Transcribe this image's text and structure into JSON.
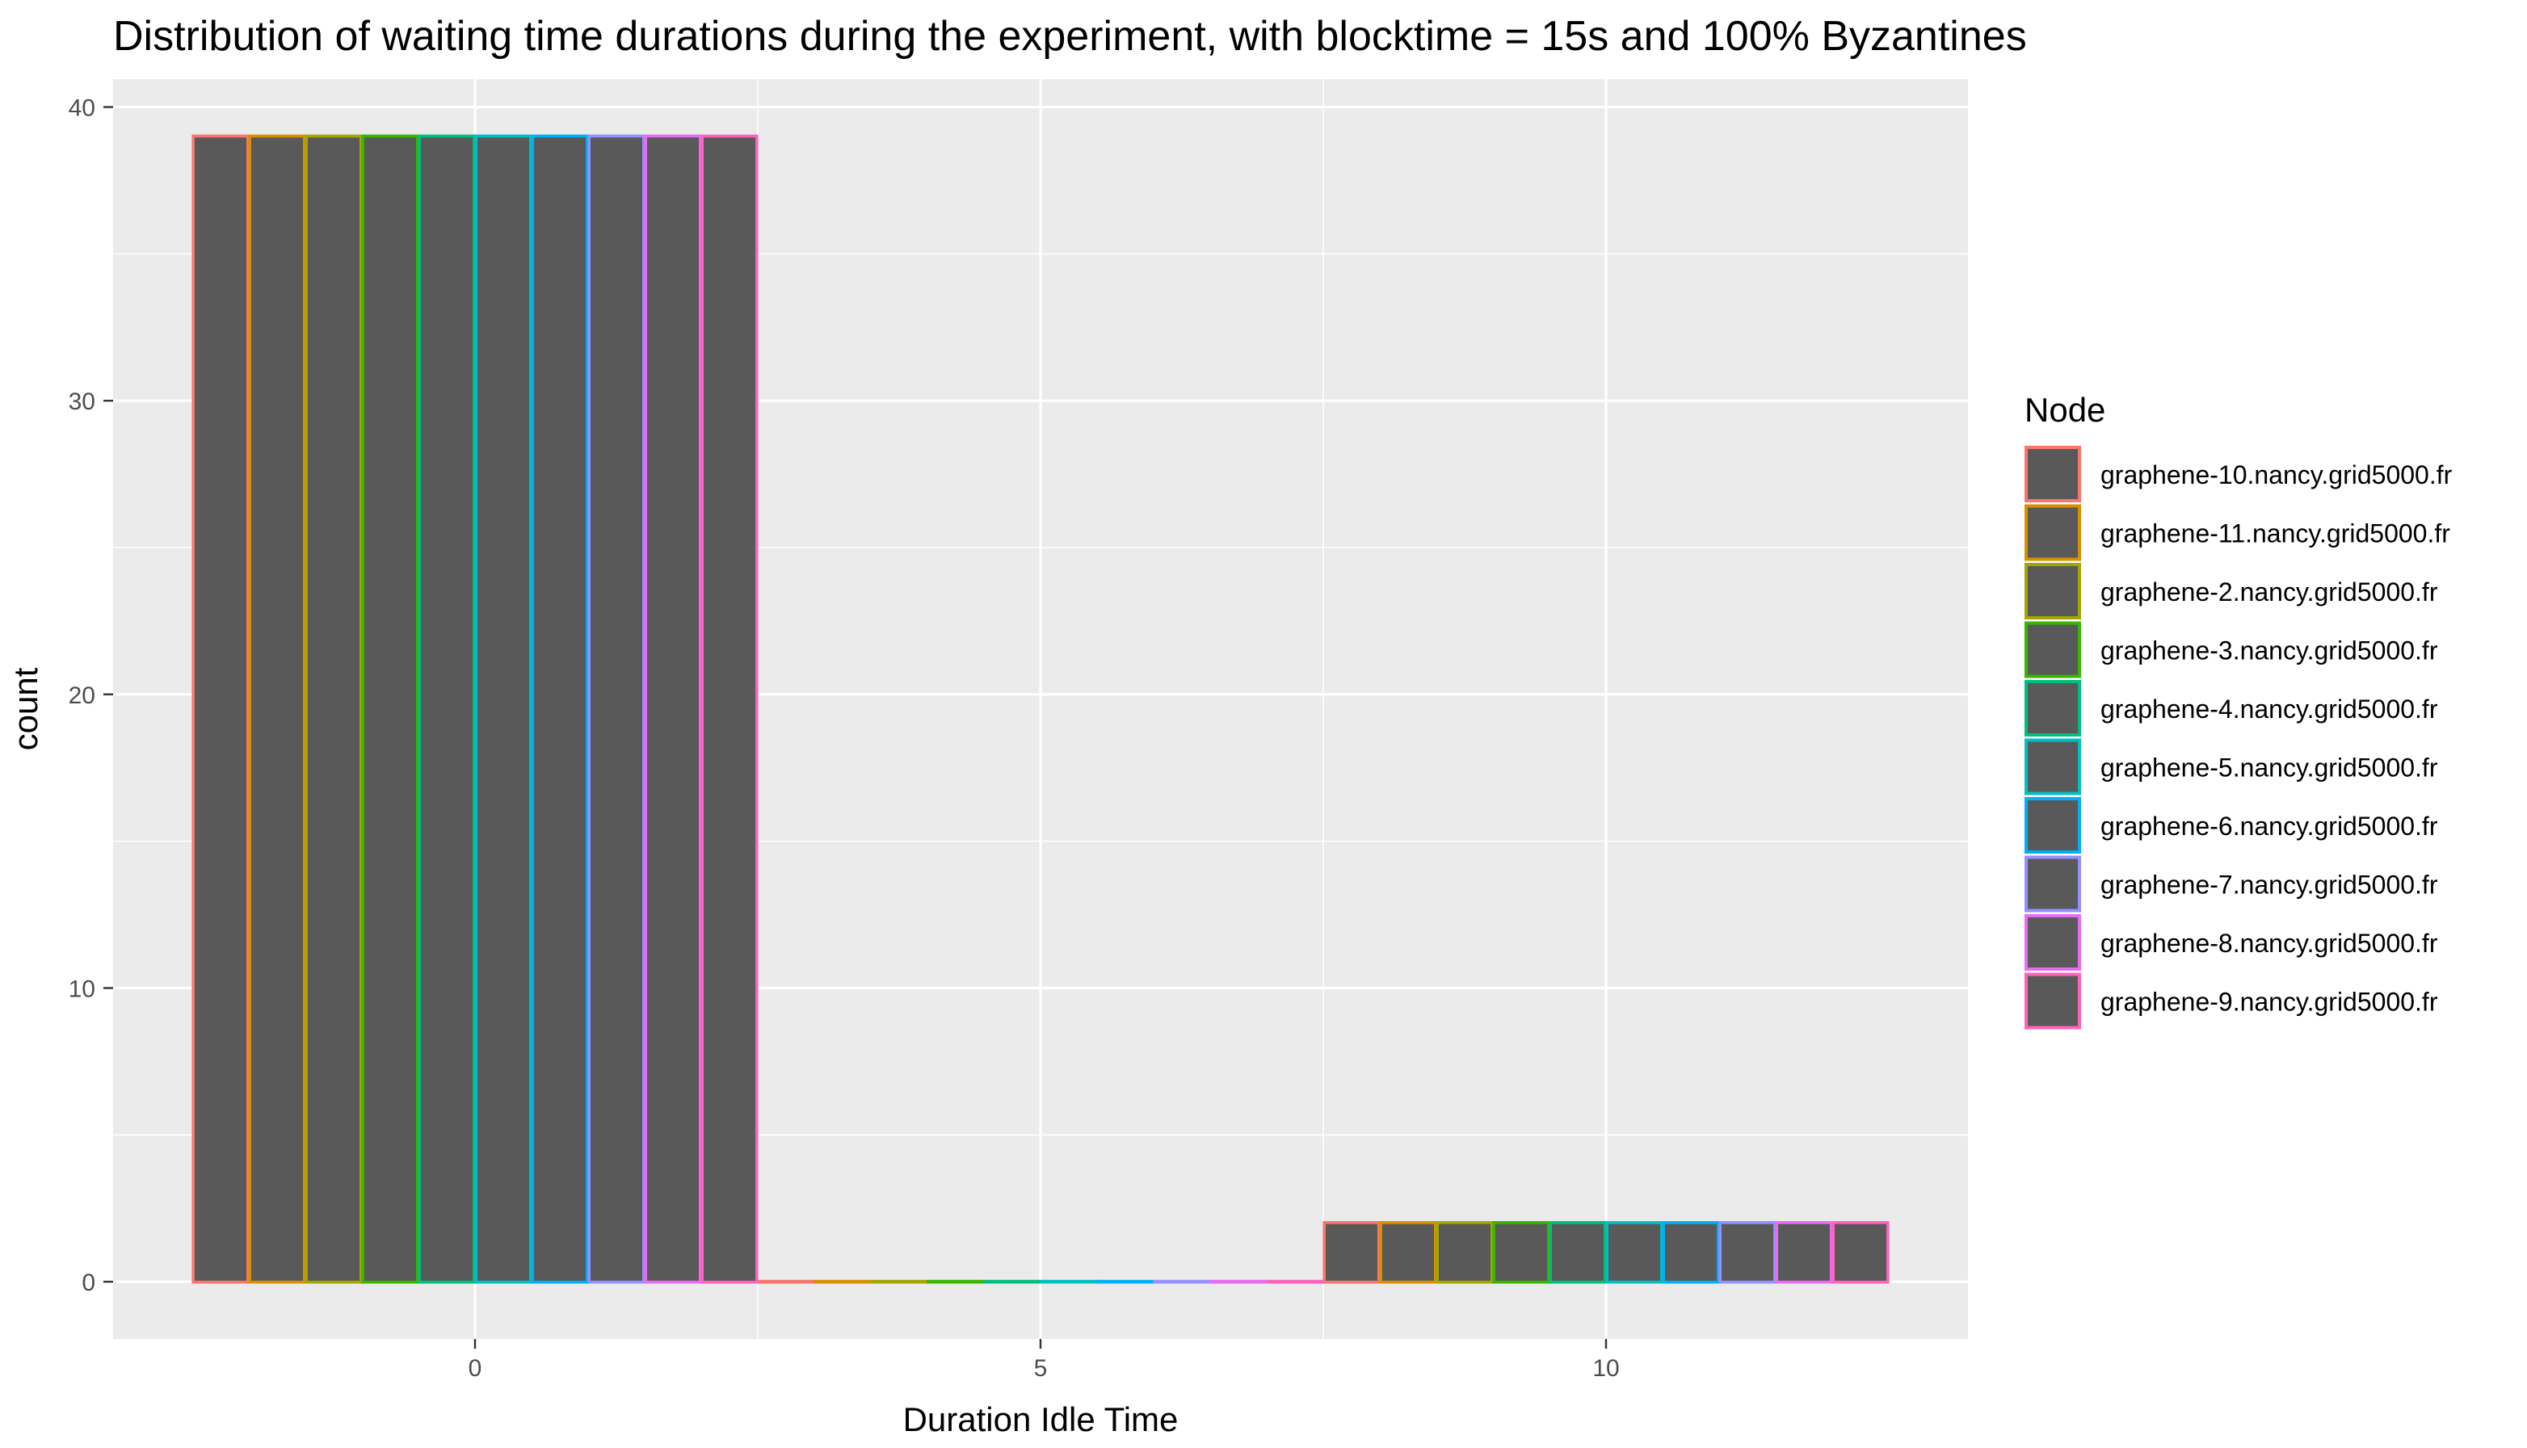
{
  "chart_data": {
    "type": "bar",
    "title": "Distribution of waiting time durations during the experiment, with blocktime = 15s and 100% Byzantines",
    "xlabel": "Duration Idle Time",
    "ylabel": "count",
    "x_ticks": [
      0,
      5,
      10
    ],
    "y_ticks": [
      0,
      10,
      20,
      30,
      40
    ],
    "xlim": [
      -3.2,
      13.2
    ],
    "ylim": [
      -1.95,
      40.95
    ],
    "bins": [
      0,
      5,
      10
    ],
    "bin_width": 5,
    "bar_fill": "#595959",
    "panel_background": "#ebebeb",
    "grid": true,
    "legend_title": "Node",
    "legend_position": "right",
    "series": [
      {
        "name": "graphene-10.nancy.grid5000.fr",
        "color": "#F8766D",
        "values": [
          39,
          0,
          2
        ]
      },
      {
        "name": "graphene-11.nancy.grid5000.fr",
        "color": "#D89000",
        "values": [
          39,
          0,
          2
        ]
      },
      {
        "name": "graphene-2.nancy.grid5000.fr",
        "color": "#A3A500",
        "values": [
          39,
          0,
          2
        ]
      },
      {
        "name": "graphene-3.nancy.grid5000.fr",
        "color": "#39B600",
        "values": [
          39,
          0,
          2
        ]
      },
      {
        "name": "graphene-4.nancy.grid5000.fr",
        "color": "#00BF7D",
        "values": [
          39,
          0,
          2
        ]
      },
      {
        "name": "graphene-5.nancy.grid5000.fr",
        "color": "#00BFC4",
        "values": [
          39,
          0,
          2
        ]
      },
      {
        "name": "graphene-6.nancy.grid5000.fr",
        "color": "#00B0F6",
        "values": [
          39,
          0,
          2
        ]
      },
      {
        "name": "graphene-7.nancy.grid5000.fr",
        "color": "#9590FF",
        "values": [
          39,
          0,
          2
        ]
      },
      {
        "name": "graphene-8.nancy.grid5000.fr",
        "color": "#E76BF3",
        "values": [
          39,
          0,
          2
        ]
      },
      {
        "name": "graphene-9.nancy.grid5000.fr",
        "color": "#FF62BC",
        "values": [
          39,
          0,
          2
        ]
      }
    ]
  }
}
